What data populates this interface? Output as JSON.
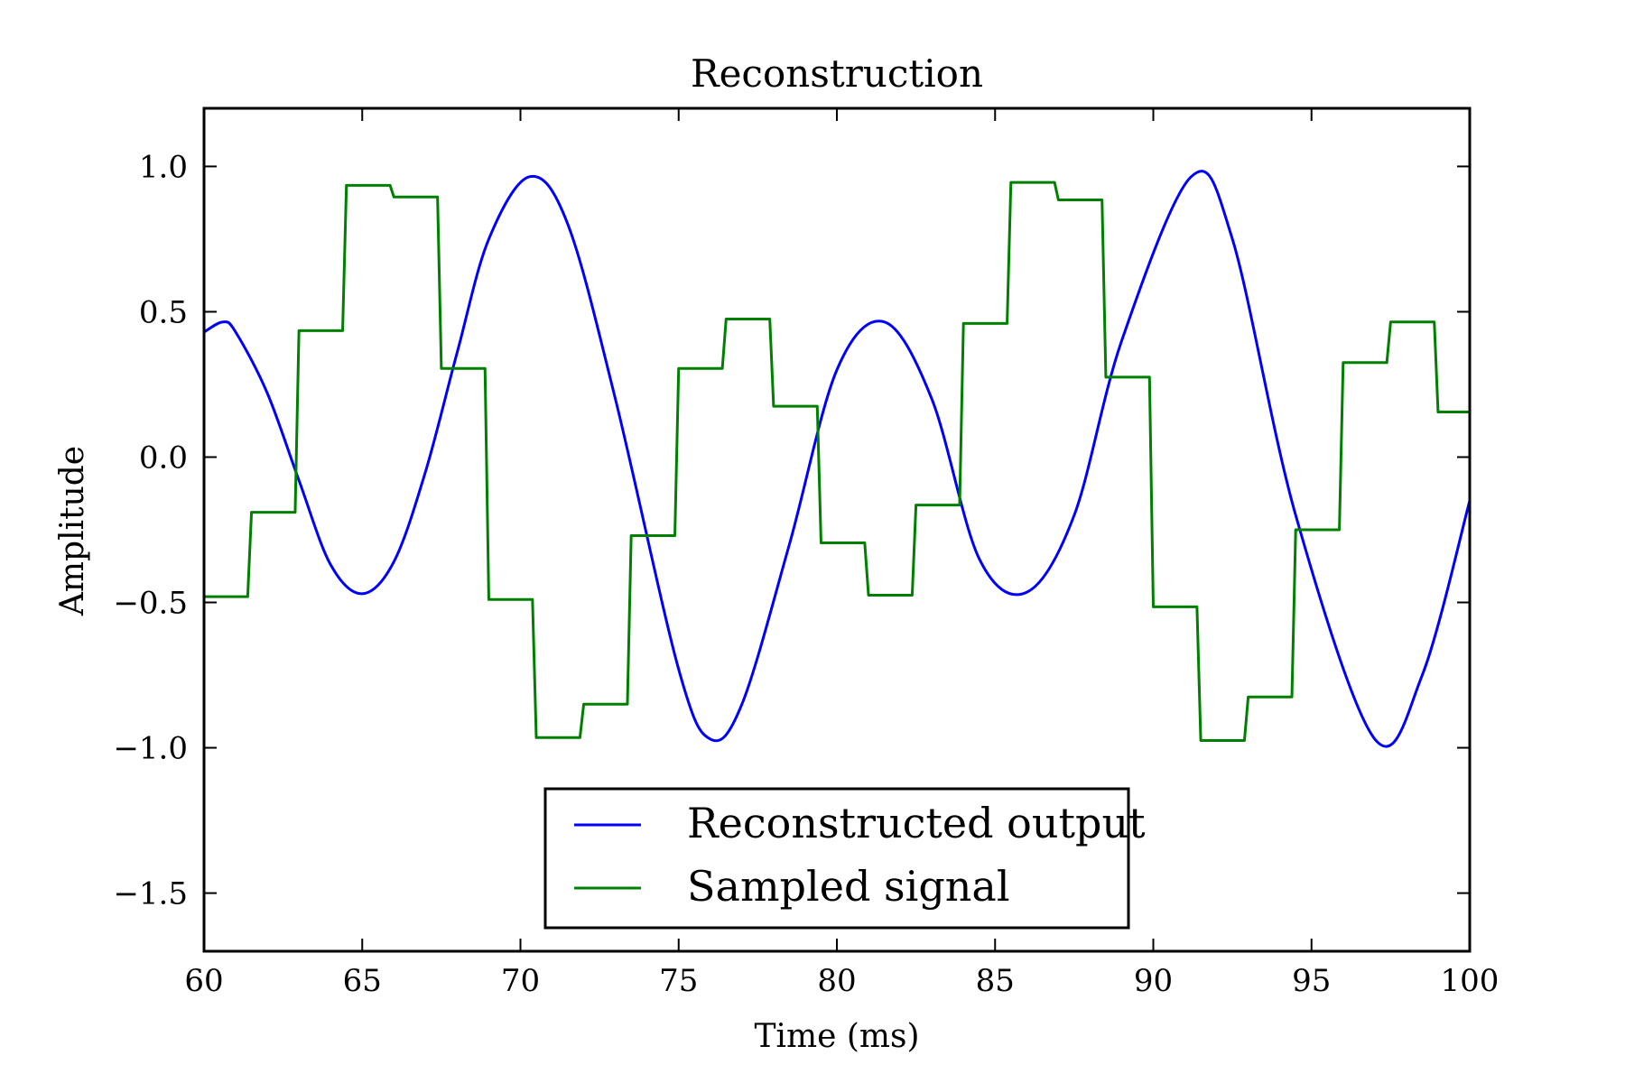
{
  "chart_data": {
    "type": "line",
    "title": "Reconstruction",
    "xlabel": "Time (ms)",
    "ylabel": "Amplitude",
    "xlim": [
      60,
      100
    ],
    "ylim": [
      -1.7,
      1.2
    ],
    "xticks": [
      "60",
      "65",
      "70",
      "75",
      "80",
      "85",
      "90",
      "95",
      "100"
    ],
    "yticks": [
      "1.0",
      "0.5",
      "0.0",
      "−0.5",
      "−1.0",
      "−1.5"
    ],
    "grid": false,
    "legend_position": "lower center",
    "series": [
      {
        "name": "Reconstructed output",
        "color": "#0000ff",
        "kind": "curve",
        "x": [
          60.0,
          60.6,
          61.0,
          62.0,
          63.0,
          64.0,
          65.0,
          66.0,
          67.0,
          68.0,
          69.0,
          70.3,
          71.5,
          73.0,
          75.0,
          76.0,
          77.0,
          78.5,
          80.0,
          81.5,
          83.0,
          84.5,
          86.0,
          87.5,
          89.0,
          91.2,
          92.5,
          94.5,
          97.0,
          98.5,
          100.0
        ],
        "y": [
          0.43,
          0.465,
          0.43,
          0.22,
          -0.08,
          -0.37,
          -0.47,
          -0.36,
          -0.05,
          0.36,
          0.75,
          0.965,
          0.8,
          0.2,
          -0.73,
          -0.97,
          -0.85,
          -0.3,
          0.3,
          0.465,
          0.2,
          -0.35,
          -0.465,
          -0.2,
          0.4,
          0.965,
          0.75,
          -0.2,
          -0.97,
          -0.75,
          -0.15
        ]
      },
      {
        "name": "Sampled signal",
        "color": "#008000",
        "kind": "zoh",
        "x": [
          60.0,
          61.5,
          63.0,
          64.5,
          66.0,
          67.5,
          69.0,
          70.5,
          72.0,
          73.5,
          75.0,
          76.5,
          78.0,
          79.5,
          81.0,
          82.5,
          84.0,
          85.5,
          87.0,
          88.5,
          90.0,
          91.5,
          93.0,
          94.5,
          96.0,
          97.5,
          99.0,
          100.0
        ],
        "y": [
          -0.48,
          -0.19,
          0.435,
          0.935,
          0.895,
          0.305,
          -0.49,
          -0.965,
          -0.85,
          -0.27,
          0.305,
          0.475,
          0.175,
          -0.295,
          -0.475,
          -0.165,
          0.46,
          0.945,
          0.885,
          0.275,
          -0.515,
          -0.975,
          -0.825,
          -0.25,
          0.325,
          0.465,
          0.155,
          0.155
        ]
      }
    ]
  }
}
